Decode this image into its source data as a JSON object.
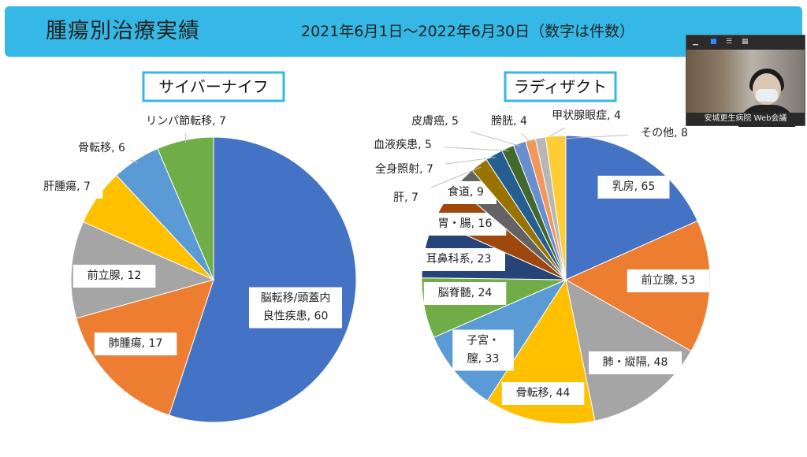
{
  "header": {
    "title": "腫瘍別治療実績",
    "period": "2021年6月1日～2022年6月30日（数字は件数）"
  },
  "webcam": {
    "name_label": "安城更生病院 Web会議"
  },
  "chart_data": [
    {
      "type": "pie",
      "title": "サイバーナイフ",
      "start_angle_deg": 0,
      "slices": [
        {
          "label": "脳転移/頭蓋内\n良性疾患",
          "value": 60,
          "color": "#4472c4"
        },
        {
          "label": "肺腫瘍",
          "value": 17,
          "color": "#ed7d31"
        },
        {
          "label": "前立腺",
          "value": 12,
          "color": "#a5a5a5"
        },
        {
          "label": "肝腫瘍",
          "value": 7,
          "color": "#ffc000"
        },
        {
          "label": "骨転移",
          "value": 6,
          "color": "#5b9bd5"
        },
        {
          "label": "リンパ節転移",
          "value": 7,
          "color": "#70ad47"
        }
      ]
    },
    {
      "type": "pie",
      "title": "ラディザクト",
      "start_angle_deg": 0,
      "slices": [
        {
          "label": "乳房",
          "value": 65,
          "color": "#4472c4"
        },
        {
          "label": "前立腺",
          "value": 53,
          "color": "#ed7d31"
        },
        {
          "label": "肺・縦隔",
          "value": 48,
          "color": "#a5a5a5"
        },
        {
          "label": "骨転移",
          "value": 44,
          "color": "#ffc000"
        },
        {
          "label": "子宮・\n膣",
          "value": 33,
          "color": "#5b9bd5"
        },
        {
          "label": "脳脊髄",
          "value": 24,
          "color": "#70ad47"
        },
        {
          "label": "耳鼻科系",
          "value": 23,
          "color": "#264478"
        },
        {
          "label": "胃・腸",
          "value": 16,
          "color": "#9e480e"
        },
        {
          "label": "食道",
          "value": 9,
          "color": "#636363"
        },
        {
          "label": "肝",
          "value": 7,
          "color": "#997300"
        },
        {
          "label": "全身照射",
          "value": 7,
          "color": "#255e91"
        },
        {
          "label": "血液疾患",
          "value": 5,
          "color": "#43682b"
        },
        {
          "label": "皮膚癌",
          "value": 5,
          "color": "#698ed0"
        },
        {
          "label": "膀胱",
          "value": 4,
          "color": "#f1975a"
        },
        {
          "label": "甲状腺眼症",
          "value": 4,
          "color": "#b7b7b7"
        },
        {
          "label": "その他",
          "value": 8,
          "color": "#ffcd33"
        }
      ]
    }
  ]
}
